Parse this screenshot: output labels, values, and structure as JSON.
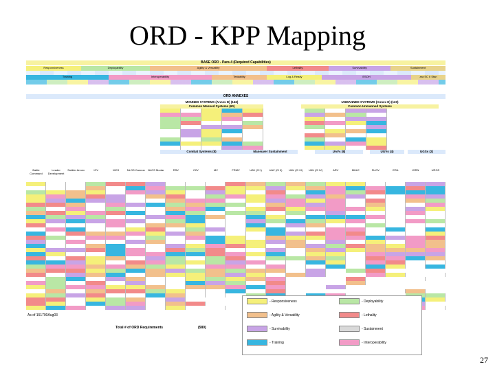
{
  "title": "ORD - KPP Mapping",
  "page_number": "27",
  "base_bar": "BASE ORD - Para 4 (Required Capabilities)",
  "annex_bar": "ORD ANNEXES",
  "manned_hdr": "MANNED SYSTEMS (Annex D) (146)",
  "manned_common": "Common Manned Systems (60)",
  "unmanned_hdr": "UNMANNED SYSTEMS (Annex E) (123)",
  "unmanned_common": "Common Unmanned Systems",
  "combat_hdr": "Combat Systems",
  "combat_n": "(8)",
  "maneuver_hdr": "Maneuver Sustainment",
  "uavs": "UAVs",
  "uavs_n": "(8)",
  "ugvs": "UGVs",
  "ugvs_n": "(4)",
  "uggs": "UGSs",
  "uggs_n": "(2)",
  "caps": [
    {
      "label": "Responsiveness",
      "color": "#f5f07a"
    },
    {
      "label": "Deployability",
      "color": "#b9e7a5"
    },
    {
      "label": "Agility & Versatility",
      "color": "#f2c08c"
    },
    {
      "label": "Lethality",
      "color": "#f28a8a"
    },
    {
      "label": "Survivability",
      "color": "#c8a4e6"
    },
    {
      "label": "Sustainment",
      "color": "#e8d38a"
    },
    {
      "label": "Training",
      "color": "#37b6e0"
    },
    {
      "label": "Interoperability",
      "color": "#f29bc6"
    },
    {
      "label": "Testability",
      "color": "#f2c08c"
    },
    {
      "label": "Log & Ready",
      "color": "#f5f07a"
    },
    {
      "label": "ESOH",
      "color": "#c8a4e6"
    },
    {
      "label": "ara SC II Stan",
      "color": "#e8d38a"
    }
  ],
  "columns": [
    "Battle Command",
    "Leader Development",
    "Soldier Annex",
    "ICV",
    "MCS",
    "NLOS Cannon",
    "NLOS Mortar",
    "RSV",
    "C2V",
    "MV",
    "FRMV",
    "UAV (Cl I)",
    "UAV (Cl II)",
    "UAV (Cl III)",
    "UAV (Cl IV)",
    "ARV",
    "MULE",
    "SUGV",
    "ERA",
    "IGRN",
    "URGS"
  ],
  "legend": [
    {
      "label": "- Responsiveness",
      "color": "#f5f07a"
    },
    {
      "label": "- Deployability",
      "color": "#b9e7a5"
    },
    {
      "label": "- Agility & Versatility",
      "color": "#f2c08c"
    },
    {
      "label": "- Lethality",
      "color": "#f28a8a"
    },
    {
      "label": "- Survivability",
      "color": "#c8a4e6"
    },
    {
      "label": "- Sustainment",
      "color": "#d9d9d9"
    },
    {
      "label": "- Training",
      "color": "#37b6e0"
    },
    {
      "label": "- Interoperability",
      "color": "#f29bc6"
    }
  ],
  "asof": "As of 151700Aug03",
  "total_label": "Total # of ORD Requirements",
  "total_value": "(580)"
}
